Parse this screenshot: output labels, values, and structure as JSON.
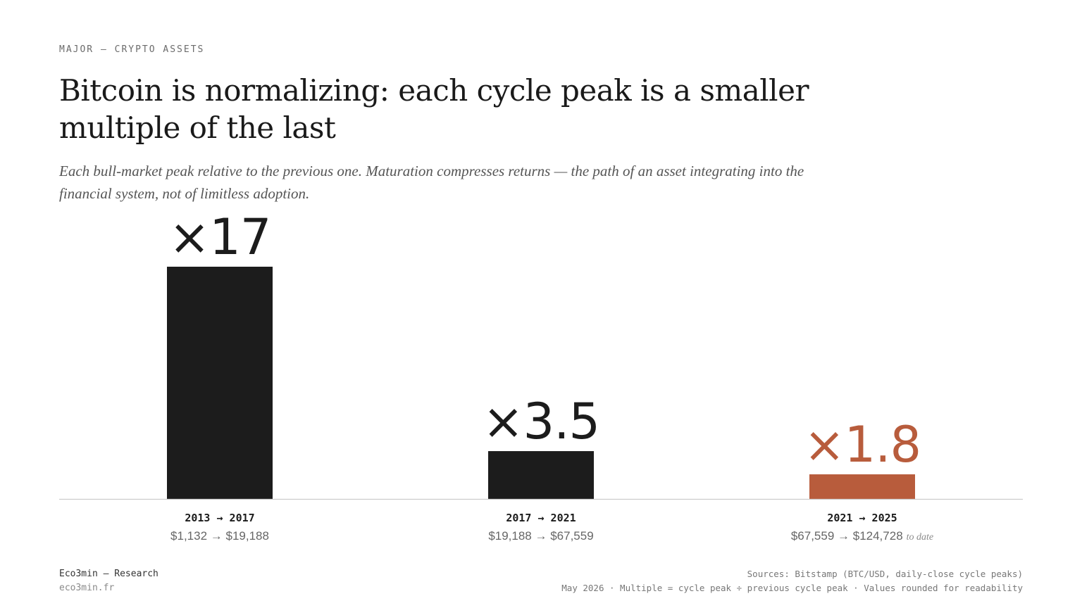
{
  "header": {
    "eyebrow": "MAJOR — CRYPTO ASSETS",
    "title": "Bitcoin is normalizing: each cycle peak is a smaller multiple of the last",
    "subtitle": "Each bull-market peak relative to the previous one. Maturation compresses returns — the path of an asset integrating into the financial system, not of limitless adoption."
  },
  "colors": {
    "bar_default": "#1c1c1c",
    "bar_highlight": "#b85c3c",
    "baseline": "#cccccc"
  },
  "chart_data": {
    "type": "bar",
    "categories": [
      "2013 → 2017",
      "2017 → 2021",
      "2021 → 2025"
    ],
    "values": [
      17,
      3.5,
      1.8
    ],
    "value_labels": [
      "×17",
      "×3.5",
      "×1.8"
    ],
    "price_ranges": [
      "$1,132 → $19,188",
      "$19,188 → $67,559",
      "$67,559 → $124,728"
    ],
    "range_notes": [
      "",
      "",
      "to date"
    ],
    "highlight_index": 2,
    "title": "",
    "xlabel": "",
    "ylabel": "",
    "ylim": [
      0,
      17
    ],
    "grid": false
  },
  "footer": {
    "brand": "Eco3min — Research",
    "site": "eco3min.fr",
    "sources": "Sources: Bitstamp (BTC/USD, daily-close cycle peaks)",
    "notes": "May 2026 · Multiple = cycle peak ÷ previous cycle peak · Values rounded for readability"
  }
}
